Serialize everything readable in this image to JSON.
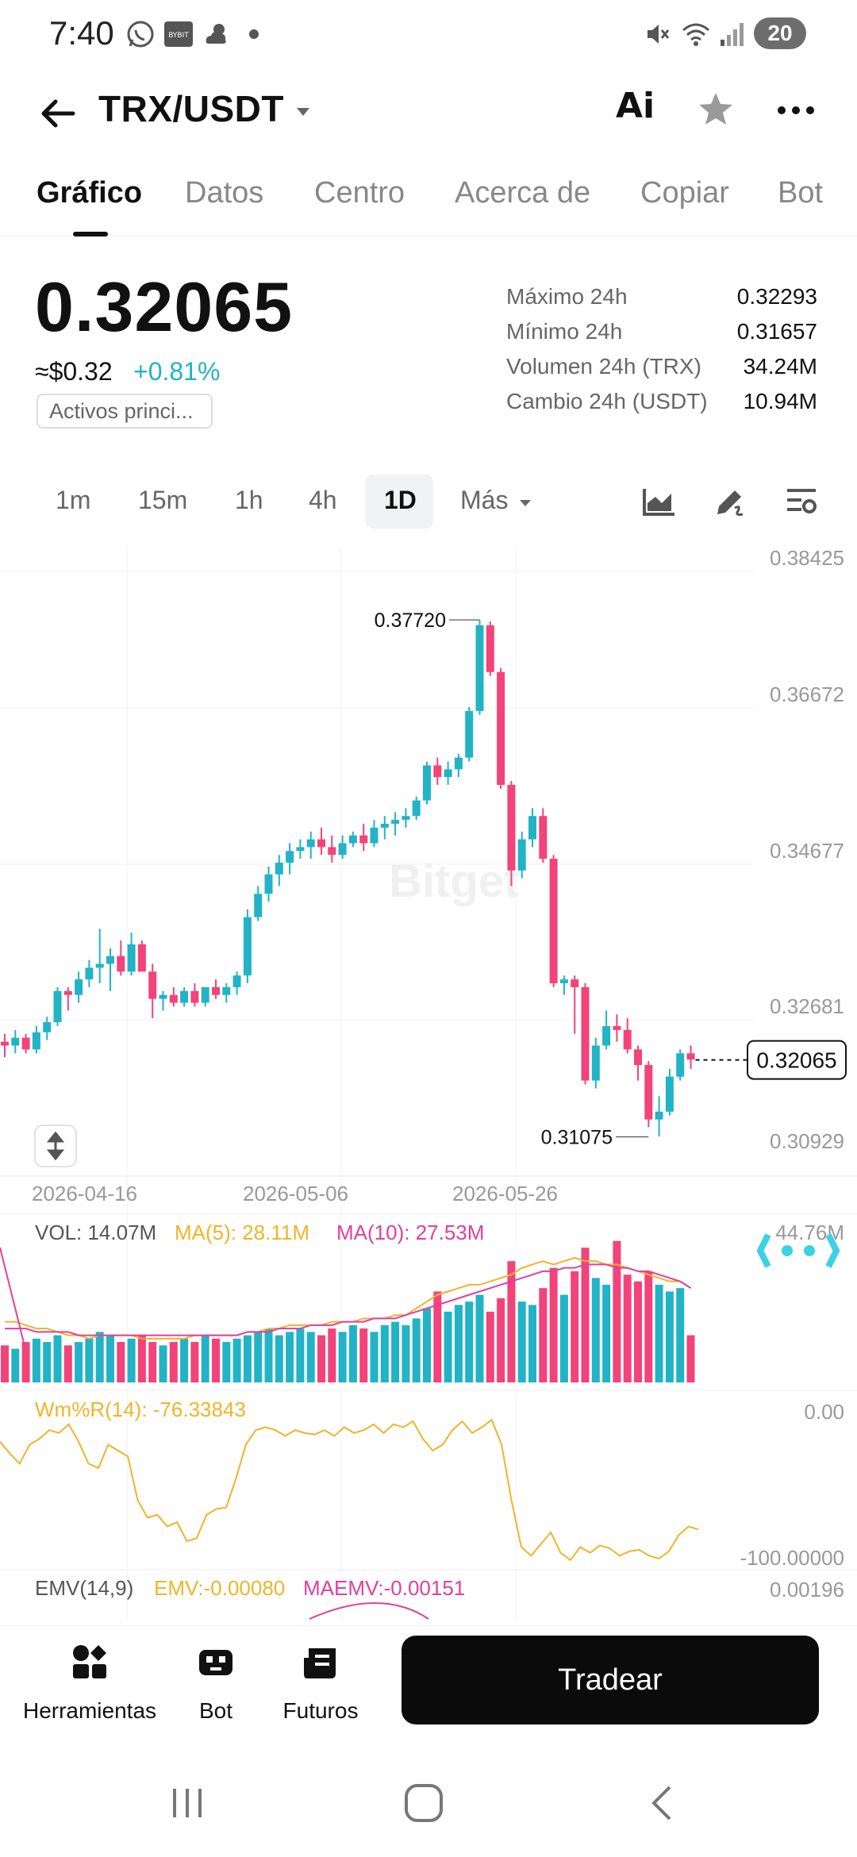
{
  "status_bar": {
    "time": "7:40",
    "battery": "20",
    "icons": [
      "whatsapp-icon",
      "bybit-icon",
      "weather-icon",
      "dot-icon",
      "mute-icon",
      "wifi-icon",
      "signal-icon"
    ]
  },
  "header": {
    "title": "TRX/USDT",
    "ai_label": "Ai"
  },
  "tabs": [
    {
      "label": "Gráfico",
      "active": true
    },
    {
      "label": "Datos"
    },
    {
      "label": "Centro"
    },
    {
      "label": "Acerca de"
    },
    {
      "label": "Copiar"
    },
    {
      "label": "Bot"
    }
  ],
  "ticker": {
    "price": "0.32065",
    "usd_price": "≈$0.32",
    "change": "+0.81%",
    "badge": "Activos princi...",
    "stats": [
      {
        "label": "Máximo 24h",
        "value": "0.32293"
      },
      {
        "label": "Mínimo 24h",
        "value": "0.31657"
      },
      {
        "label": "Volumen 24h (TRX)",
        "value": "34.24M"
      },
      {
        "label": "Cambio 24h (USDT)",
        "value": "10.94M"
      }
    ]
  },
  "intervals": [
    {
      "label": "1m"
    },
    {
      "label": "15m"
    },
    {
      "label": "1h"
    },
    {
      "label": "4h"
    },
    {
      "label": "1D",
      "active": true
    },
    {
      "label": "Más"
    }
  ],
  "chart_data": {
    "type": "candlestick",
    "watermark": "Bitget",
    "price_axis_labels": [
      "0.38425",
      "0.36672",
      "0.34677",
      "0.32681",
      "0.30929"
    ],
    "date_labels": [
      "2026-04-16",
      "2026-05-06",
      "2026-05-26"
    ],
    "high_annotation": "0.37720",
    "low_annotation": "0.31075",
    "last_price_tag": "0.32065",
    "colors": {
      "up": "#22b3c6",
      "down": "#f2437a",
      "ma5": "#f0b429",
      "ma10": "#e040a0"
    },
    "candles": [
      [
        0.323,
        0.324,
        0.321,
        0.3225
      ],
      [
        0.3225,
        0.3245,
        0.3215,
        0.3235
      ],
      [
        0.3235,
        0.324,
        0.3215,
        0.322
      ],
      [
        0.322,
        0.325,
        0.3215,
        0.3242
      ],
      [
        0.3242,
        0.3262,
        0.3232,
        0.3255
      ],
      [
        0.3255,
        0.33,
        0.325,
        0.3295
      ],
      [
        0.3295,
        0.33,
        0.327,
        0.329
      ],
      [
        0.329,
        0.332,
        0.328,
        0.331
      ],
      [
        0.331,
        0.3335,
        0.33,
        0.3325
      ],
      [
        0.3325,
        0.3375,
        0.3305,
        0.333
      ],
      [
        0.333,
        0.335,
        0.3295,
        0.334
      ],
      [
        0.334,
        0.336,
        0.3315,
        0.332
      ],
      [
        0.332,
        0.337,
        0.3315,
        0.3355
      ],
      [
        0.3355,
        0.336,
        0.332,
        0.332
      ],
      [
        0.332,
        0.333,
        0.326,
        0.3285
      ],
      [
        0.3285,
        0.3295,
        0.327,
        0.329
      ],
      [
        0.329,
        0.33,
        0.3275,
        0.328
      ],
      [
        0.328,
        0.33,
        0.3275,
        0.3295
      ],
      [
        0.3295,
        0.3305,
        0.3275,
        0.328
      ],
      [
        0.328,
        0.33,
        0.3275,
        0.33
      ],
      [
        0.33,
        0.331,
        0.3285,
        0.329
      ],
      [
        0.329,
        0.3305,
        0.328,
        0.33
      ],
      [
        0.33,
        0.332,
        0.329,
        0.3315
      ],
      [
        0.3315,
        0.34,
        0.3305,
        0.339
      ],
      [
        0.339,
        0.343,
        0.3385,
        0.342
      ],
      [
        0.342,
        0.3455,
        0.341,
        0.3445
      ],
      [
        0.3445,
        0.347,
        0.343,
        0.346
      ],
      [
        0.346,
        0.3485,
        0.3445,
        0.3475
      ],
      [
        0.3475,
        0.349,
        0.3465,
        0.348
      ],
      [
        0.348,
        0.35,
        0.3465,
        0.349
      ],
      [
        0.349,
        0.3505,
        0.347,
        0.348
      ],
      [
        0.348,
        0.3495,
        0.346,
        0.347
      ],
      [
        0.347,
        0.3495,
        0.3465,
        0.3485
      ],
      [
        0.3485,
        0.35,
        0.348,
        0.3495
      ],
      [
        0.3495,
        0.351,
        0.3475,
        0.3485
      ],
      [
        0.3485,
        0.3515,
        0.348,
        0.3505
      ],
      [
        0.3505,
        0.352,
        0.349,
        0.351
      ],
      [
        0.351,
        0.3525,
        0.3495,
        0.3515
      ],
      [
        0.3515,
        0.353,
        0.3505,
        0.352
      ],
      [
        0.352,
        0.3545,
        0.3515,
        0.354
      ],
      [
        0.354,
        0.359,
        0.3535,
        0.3585
      ],
      [
        0.3585,
        0.3595,
        0.356,
        0.357
      ],
      [
        0.357,
        0.359,
        0.356,
        0.358
      ],
      [
        0.358,
        0.36,
        0.357,
        0.3595
      ],
      [
        0.3595,
        0.366,
        0.359,
        0.3655
      ],
      [
        0.3655,
        0.3772,
        0.365,
        0.3765
      ],
      [
        0.3765,
        0.377,
        0.37,
        0.3705
      ],
      [
        0.3705,
        0.371,
        0.3555,
        0.356
      ],
      [
        0.356,
        0.3565,
        0.343,
        0.345
      ],
      [
        0.345,
        0.35,
        0.344,
        0.349
      ],
      [
        0.349,
        0.353,
        0.348,
        0.352
      ],
      [
        0.352,
        0.353,
        0.346,
        0.3465
      ],
      [
        0.3465,
        0.347,
        0.33,
        0.3305
      ],
      [
        0.3305,
        0.3315,
        0.329,
        0.331
      ],
      [
        0.331,
        0.3315,
        0.324,
        0.33
      ],
      [
        0.33,
        0.3305,
        0.3175,
        0.318
      ],
      [
        0.318,
        0.3235,
        0.317,
        0.3225
      ],
      [
        0.3225,
        0.327,
        0.322,
        0.325
      ],
      [
        0.325,
        0.3265,
        0.323,
        0.3245
      ],
      [
        0.3245,
        0.326,
        0.3215,
        0.322
      ],
      [
        0.322,
        0.3225,
        0.318,
        0.32
      ],
      [
        0.32,
        0.3205,
        0.312,
        0.313
      ],
      [
        0.313,
        0.316,
        0.3108,
        0.314
      ],
      [
        0.314,
        0.3195,
        0.3135,
        0.3185
      ],
      [
        0.3185,
        0.322,
        0.318,
        0.3215
      ],
      [
        0.3215,
        0.3225,
        0.3195,
        0.3207
      ]
    ],
    "volume_panel": {
      "vol": "VOL: 14.07M",
      "ma5": "MA(5): 28.11M",
      "ma10": "MA(10): 27.53M",
      "axis_max": "44.76M",
      "volumes": [
        11,
        10,
        12,
        13,
        12,
        14,
        11,
        12,
        13,
        15,
        14,
        12,
        13,
        14,
        12,
        11,
        12,
        13,
        12,
        14,
        13,
        12,
        13,
        14,
        15,
        16,
        14,
        15,
        16,
        15,
        14,
        16,
        15,
        17,
        16,
        15,
        17,
        18,
        17,
        19,
        22,
        27,
        21,
        23,
        24,
        26,
        21,
        25,
        36,
        24,
        23,
        28,
        34,
        26,
        33,
        40,
        31,
        29,
        42,
        32,
        30,
        33,
        29,
        27,
        28,
        14
      ],
      "ma5_line": [
        18,
        18,
        17,
        16,
        16,
        15,
        14,
        14,
        13,
        14,
        14,
        14,
        14,
        13,
        13,
        13,
        13,
        13,
        14,
        14,
        14,
        14,
        14,
        15,
        15,
        16,
        16,
        17,
        17,
        17,
        17,
        18,
        18,
        18,
        19,
        19,
        19,
        20,
        20,
        22,
        24,
        26,
        27,
        28,
        29,
        29,
        30,
        31,
        32,
        34,
        35,
        36,
        35,
        36,
        37,
        36,
        36,
        35,
        35,
        34,
        33,
        32,
        31,
        30,
        30,
        28
      ],
      "ma10_line": [
        16,
        16,
        16,
        15,
        15,
        15,
        15,
        14,
        14,
        14,
        14,
        14,
        14,
        14,
        14,
        14,
        14,
        14,
        14,
        14,
        14,
        14,
        14,
        15,
        15,
        15,
        16,
        16,
        16,
        17,
        17,
        17,
        18,
        18,
        18,
        19,
        19,
        19,
        20,
        21,
        22,
        23,
        24,
        25,
        26,
        27,
        28,
        29,
        30,
        31,
        32,
        33,
        33,
        34,
        34,
        35,
        35,
        35,
        34,
        34,
        33,
        33,
        32,
        31,
        30,
        28
      ]
    },
    "wr_panel": {
      "label": "Wm%R(14): -76.33843",
      "top_label": "0.00",
      "bottom_label": "-100.00000",
      "values": [
        -20,
        -28,
        -35,
        -22,
        -18,
        -12,
        -14,
        -8,
        -20,
        -35,
        -38,
        -22,
        -26,
        -30,
        -60,
        -72,
        -70,
        -78,
        -75,
        -88,
        -86,
        -70,
        -66,
        -65,
        -45,
        -22,
        -12,
        -10,
        -12,
        -16,
        -12,
        -14,
        -15,
        -12,
        -16,
        -10,
        -14,
        -12,
        -8,
        -14,
        -8,
        -10,
        -6,
        -18,
        -26,
        -22,
        -12,
        -6,
        -14,
        -10,
        -5,
        -22,
        -60,
        -92,
        -98,
        -90,
        -82,
        -96,
        -101,
        -92,
        -96,
        -91,
        -93,
        -98,
        -95,
        -94,
        -98,
        -100,
        -95,
        -84,
        -78,
        -80
      ]
    },
    "emv_panel": {
      "label": "EMV(14,9)",
      "emv": "EMV:-0.00080",
      "maemv": "MAEMV:-0.00151",
      "axis_label": "0.00196"
    }
  },
  "bottom_nav": {
    "items": [
      {
        "label": "Herramientas",
        "icon": "tools-icon"
      },
      {
        "label": "Bot",
        "icon": "bot-icon"
      },
      {
        "label": "Futuros",
        "icon": "futures-icon"
      }
    ],
    "trade_button": "Tradear"
  }
}
